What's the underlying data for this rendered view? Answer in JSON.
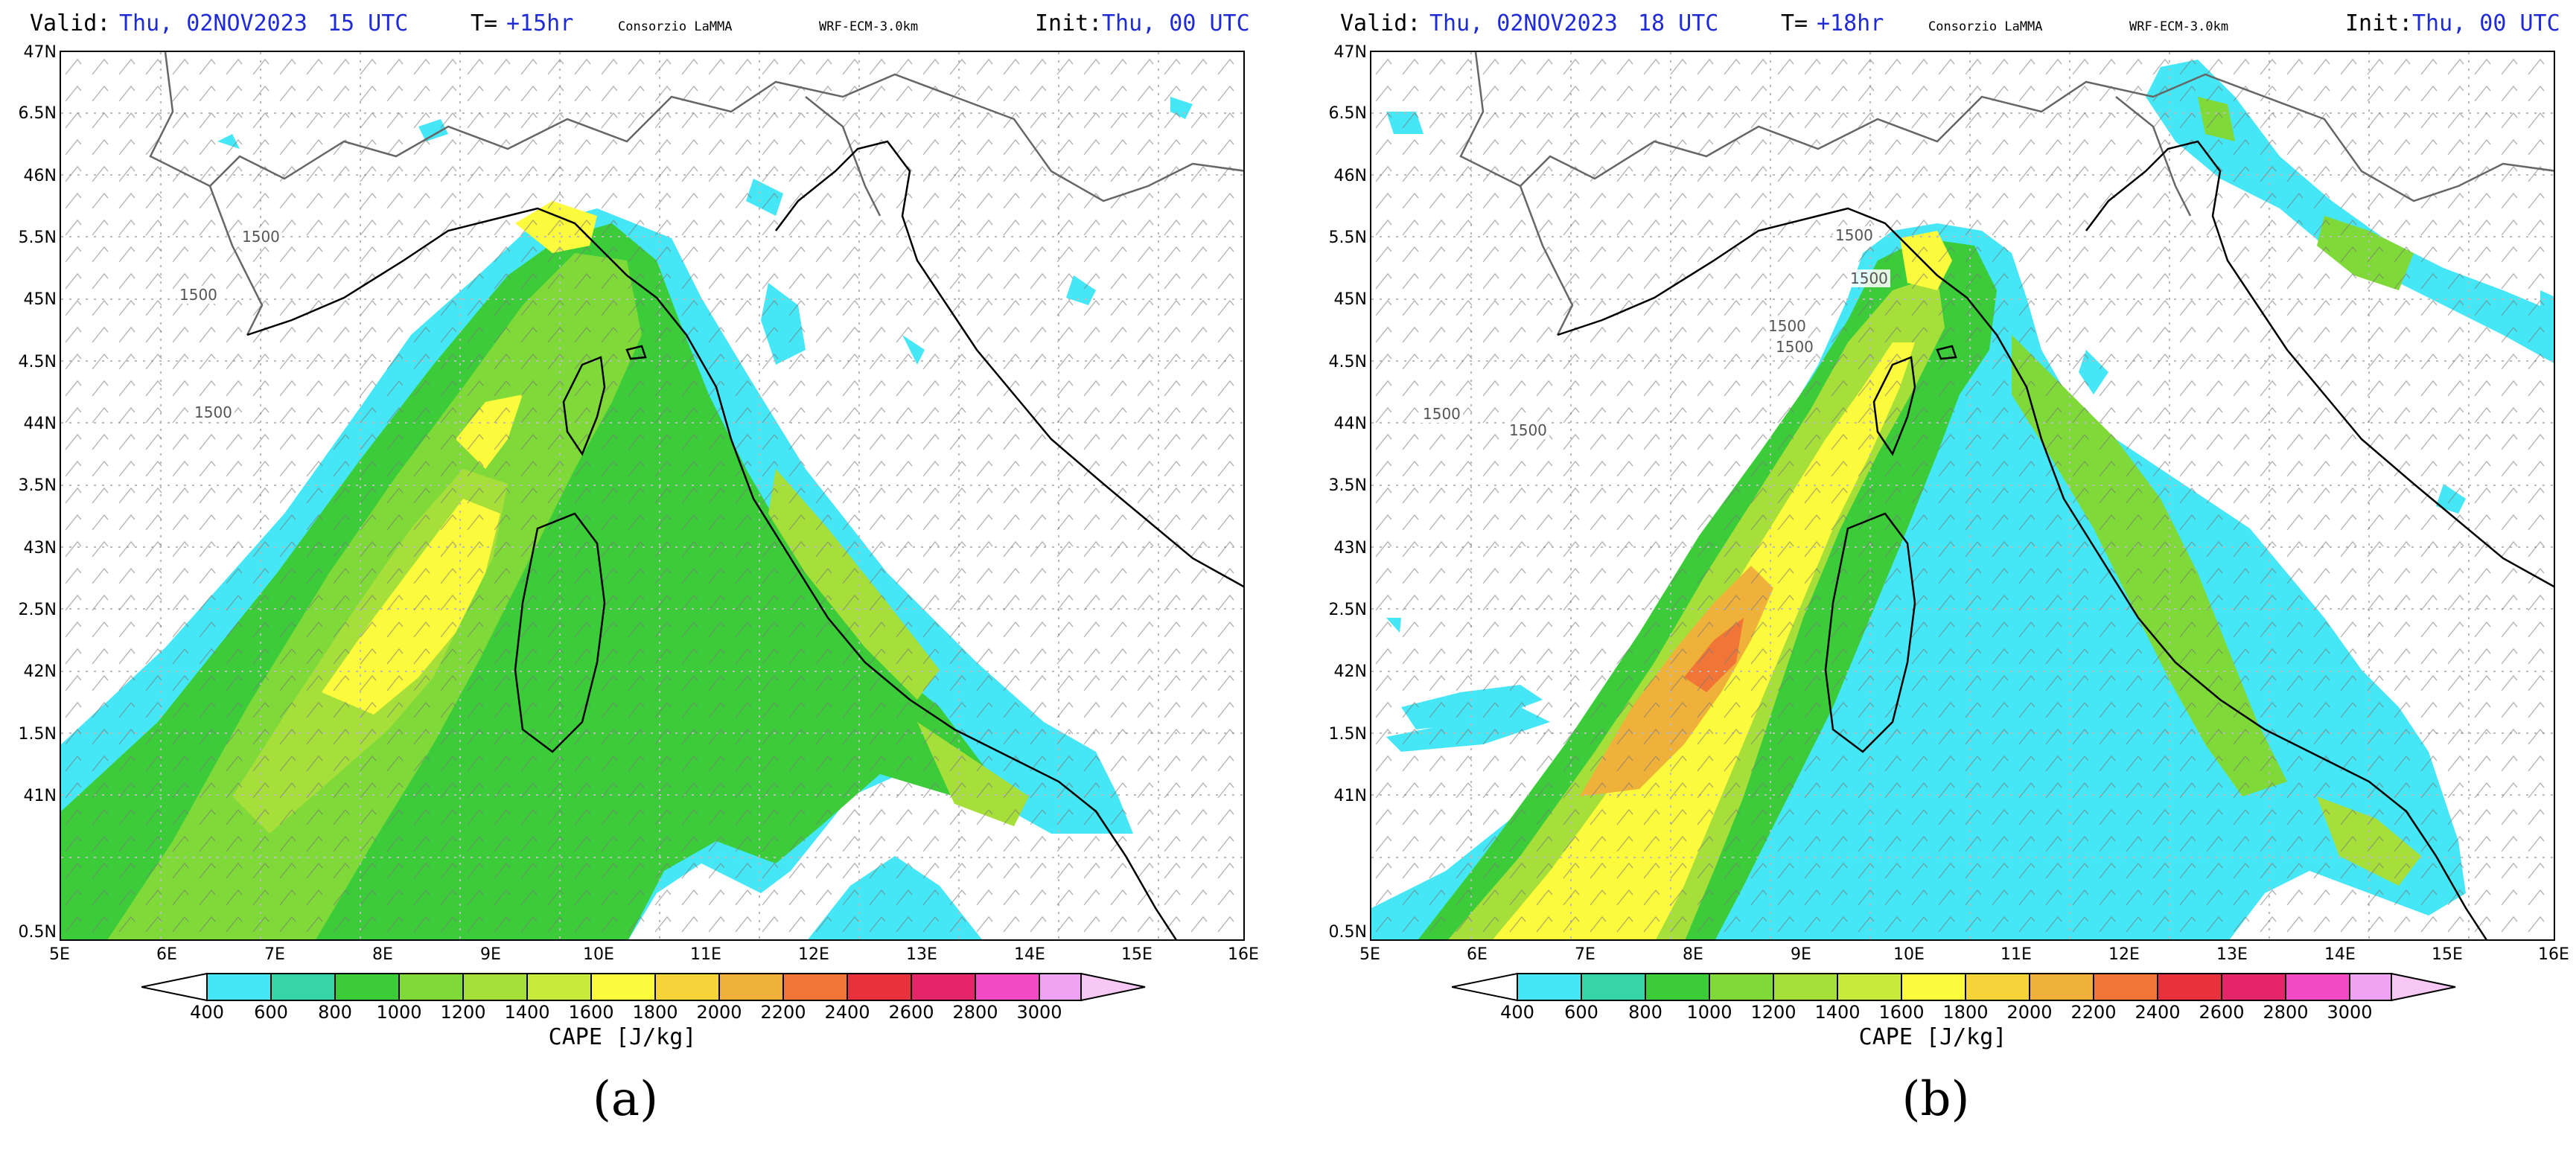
{
  "colors": {
    "scale": [
      "#45e6f5",
      "#37d5a6",
      "#3ccc3a",
      "#7fd939",
      "#a6df3a",
      "#fcfa3c",
      "#f0b13a",
      "#f07536",
      "#e8313a",
      "#e42568",
      "#f04ac4",
      "#f0a3f2"
    ],
    "coast": "#000000",
    "borders": "#666666",
    "grid": "#bbbbbb"
  },
  "panels": [
    {
      "header": {
        "valid_label": "Valid:",
        "valid_date": "Thu, 02NOV2023",
        "valid_hour": "15 UTC",
        "lead_label": "T=",
        "lead_value": "+15hr",
        "org": "Consorzio LaMMA",
        "model": "WRF-ECM-3.0km",
        "init_label": "Init:",
        "init_value": "Thu, 00 UTC"
      },
      "contour_labels": [
        "1500",
        "1500",
        "1500"
      ],
      "caption": "(a)"
    },
    {
      "header": {
        "valid_label": "Valid:",
        "valid_date": "Thu, 02NOV2023",
        "valid_hour": "18 UTC",
        "lead_label": "T=",
        "lead_value": "+18hr",
        "org": "Consorzio LaMMA",
        "model": "WRF-ECM-3.0km",
        "init_label": "Init:",
        "init_value": "Thu, 00 UTC"
      },
      "contour_labels": [
        "1500",
        "1500",
        "1500",
        "1500",
        "1500",
        "1500"
      ],
      "caption": "(b)"
    }
  ],
  "axes": {
    "lat_labels": [
      "47N",
      "6.5N",
      "46N",
      "5.5N",
      "45N",
      "4.5N",
      "44N",
      "3.5N",
      "43N",
      "2.5N",
      "42N",
      "1.5N",
      "41N",
      "0.5N"
    ],
    "lon_labels": [
      "5E",
      "6E",
      "7E",
      "8E",
      "9E",
      "10E",
      "11E",
      "12E",
      "13E",
      "14E",
      "15E",
      "16E"
    ]
  },
  "colorbar": {
    "ticks": [
      "400",
      "600",
      "800",
      "1000",
      "1200",
      "1400",
      "1600",
      "1800",
      "2000",
      "2200",
      "2400",
      "2600",
      "2800",
      "3000"
    ],
    "title": "CAPE [J/kg]"
  }
}
